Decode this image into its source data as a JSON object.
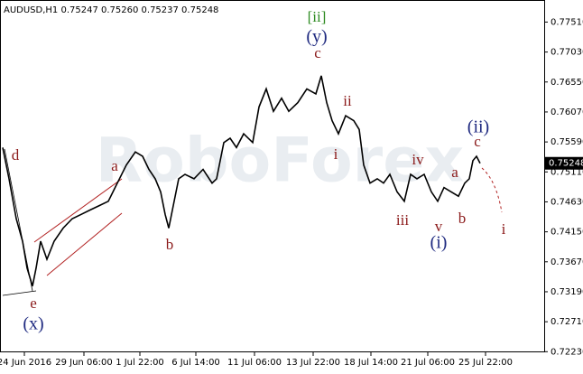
{
  "chart_data": {
    "type": "line",
    "title": "AUDUSD,H1  0.75247 0.75260 0.75237 0.75248",
    "watermark": "RoboForex",
    "x": [
      3,
      10,
      18,
      25,
      30,
      36,
      40,
      45,
      52,
      60,
      70,
      80,
      90,
      100,
      110,
      120,
      130,
      140,
      150,
      158,
      165,
      172,
      178,
      183,
      187,
      192,
      198,
      205,
      215,
      225,
      235,
      240,
      248,
      255,
      262,
      270,
      280,
      287,
      295,
      303,
      312,
      320,
      330,
      340,
      350,
      356,
      362,
      368,
      375,
      383,
      392,
      398,
      403,
      410,
      418,
      425,
      432,
      440,
      448,
      455,
      462,
      470,
      478,
      485,
      492,
      500,
      508,
      515,
      520,
      524,
      528,
      532
    ],
    "series": [
      {
        "name": "AUDUSD",
        "color": "#000000",
        "values": [
          0.755,
          0.75,
          0.7436,
          0.74,
          0.7357,
          0.7328,
          0.7357,
          0.74,
          0.7371,
          0.74,
          0.7421,
          0.7436,
          0.7443,
          0.745,
          0.7457,
          0.7464,
          0.7493,
          0.7522,
          0.7543,
          0.7536,
          0.7515,
          0.75,
          0.7479,
          0.7443,
          0.7421,
          0.7457,
          0.75,
          0.7507,
          0.75,
          0.7515,
          0.7493,
          0.75,
          0.7558,
          0.7565,
          0.755,
          0.7572,
          0.7558,
          0.7615,
          0.7644,
          0.7608,
          0.7629,
          0.7608,
          0.7622,
          0.7644,
          0.7636,
          0.7665,
          0.7622,
          0.7593,
          0.7572,
          0.7601,
          0.7593,
          0.7579,
          0.7522,
          0.7493,
          0.75,
          0.7493,
          0.7507,
          0.7479,
          0.7464,
          0.7507,
          0.75,
          0.7507,
          0.7479,
          0.7464,
          0.7486,
          0.7479,
          0.7472,
          0.7493,
          0.75,
          0.7529,
          0.7536,
          0.75248
        ]
      }
    ],
    "xlim": [
      0,
      603
    ],
    "xticks": [
      {
        "value": 27,
        "label": "24 Jun 2016"
      },
      {
        "value": 93,
        "label": "29 Jun 06:00"
      },
      {
        "value": 155,
        "label": "1 Jul 22:00"
      },
      {
        "value": 217,
        "label": "6 Jul 14:00"
      },
      {
        "value": 282,
        "label": "11 Jul 06:00"
      },
      {
        "value": 347,
        "label": "13 Jul 22:00"
      },
      {
        "value": 411,
        "label": "18 Jul 14:00"
      },
      {
        "value": 474,
        "label": "21 Jul 06:00"
      },
      {
        "value": 538,
        "label": "25 Jul 22:00"
      }
    ],
    "ylim": [
      0.7222,
      0.7782
    ],
    "yticks": [
      {
        "value": 0.7751,
        "label": "0.77510"
      },
      {
        "value": 0.7703,
        "label": "0.77030"
      },
      {
        "value": 0.7655,
        "label": "0.76550"
      },
      {
        "value": 0.7607,
        "label": "0.76070"
      },
      {
        "value": 0.7559,
        "label": "0.75590"
      },
      {
        "value": 0.7511,
        "label": "0.75110"
      },
      {
        "value": 0.7463,
        "label": "0.74630"
      },
      {
        "value": 0.7415,
        "label": "0.74150"
      },
      {
        "value": 0.7367,
        "label": "0.73670"
      },
      {
        "value": 0.7319,
        "label": "0.73190"
      },
      {
        "value": 0.7271,
        "label": "0.72710"
      },
      {
        "value": 0.7223,
        "label": "0.72230"
      }
    ],
    "last_price": {
      "value": 0.75248,
      "label": "0.75248"
    },
    "annotations": [
      "[ii]",
      "(y)",
      "c",
      "ii",
      "i",
      "iv",
      "iii",
      "v",
      "(i)",
      "a",
      "b",
      "(ii)",
      "c",
      "i",
      "a",
      "b",
      "d",
      "e",
      "(x)"
    ]
  }
}
